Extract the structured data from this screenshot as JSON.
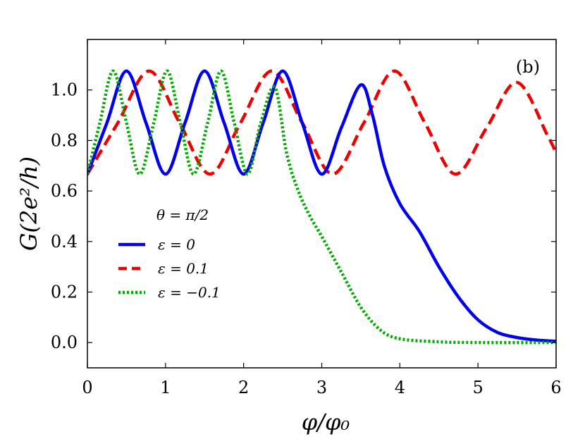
{
  "chart_data": {
    "type": "line",
    "panel_label": "(b)",
    "xlabel": "φ/φ₀",
    "ylabel": "G(2e²/h)",
    "xlim": [
      0,
      6
    ],
    "ylim": [
      -0.1,
      1.2
    ],
    "x_ticks": [
      0,
      1,
      2,
      3,
      4,
      5,
      6
    ],
    "x_tick_labels": [
      "0",
      "1",
      "2",
      "3",
      "4",
      "5",
      "6"
    ],
    "y_ticks": [
      0.0,
      0.2,
      0.4,
      0.6,
      0.8,
      1.0
    ],
    "y_tick_labels": [
      "0.0",
      "0.2",
      "0.4",
      "0.6",
      "0.8",
      "1.0"
    ],
    "grid": false,
    "legend": {
      "title": "θ = π/2",
      "placement": "center-left"
    },
    "series": [
      {
        "name": "ε = 0",
        "color": "#0000ee",
        "dash": "solid",
        "x": [
          0,
          0.25,
          0.5,
          0.75,
          1.0,
          1.25,
          1.5,
          1.75,
          2.0,
          2.25,
          2.5,
          2.75,
          3.0,
          3.25,
          3.5,
          3.65,
          3.8,
          4.0,
          4.25,
          4.5,
          4.75,
          5.0,
          5.25,
          5.5,
          5.75,
          6.0
        ],
        "y": [
          0.667,
          0.87,
          1.075,
          0.87,
          0.667,
          0.87,
          1.075,
          0.87,
          0.667,
          0.87,
          1.075,
          0.87,
          0.667,
          0.85,
          1.02,
          0.9,
          0.7,
          0.55,
          0.44,
          0.3,
          0.18,
          0.09,
          0.04,
          0.02,
          0.01,
          0.005
        ]
      },
      {
        "name": "ε = 0.1",
        "color": "#ee0000",
        "dash": "dashed",
        "x": [
          0,
          0.39,
          0.79,
          1.18,
          1.57,
          1.96,
          2.36,
          2.75,
          3.14,
          3.54,
          3.93,
          4.32,
          4.71,
          5.11,
          5.5,
          5.89,
          6.0
        ],
        "y": [
          0.667,
          0.87,
          1.075,
          0.87,
          0.667,
          0.87,
          1.075,
          0.87,
          0.667,
          0.87,
          1.075,
          0.87,
          0.667,
          0.85,
          1.03,
          0.82,
          0.75
        ]
      },
      {
        "name": "ε = −0.1",
        "color": "#00aa00",
        "dash": "dotted",
        "x": [
          0,
          0.16,
          0.33,
          0.5,
          0.67,
          0.85,
          1.02,
          1.19,
          1.36,
          1.54,
          1.71,
          1.88,
          2.05,
          2.22,
          2.4,
          2.55,
          2.7,
          2.85,
          3.0,
          3.25,
          3.5,
          3.75,
          4.0,
          4.5,
          5.0,
          6.0
        ],
        "y": [
          0.667,
          0.87,
          1.075,
          0.87,
          0.667,
          0.87,
          1.075,
          0.87,
          0.667,
          0.87,
          1.075,
          0.87,
          0.667,
          0.87,
          1.01,
          0.75,
          0.6,
          0.5,
          0.42,
          0.28,
          0.14,
          0.05,
          0.015,
          0.003,
          0.0,
          0.0
        ]
      }
    ]
  }
}
